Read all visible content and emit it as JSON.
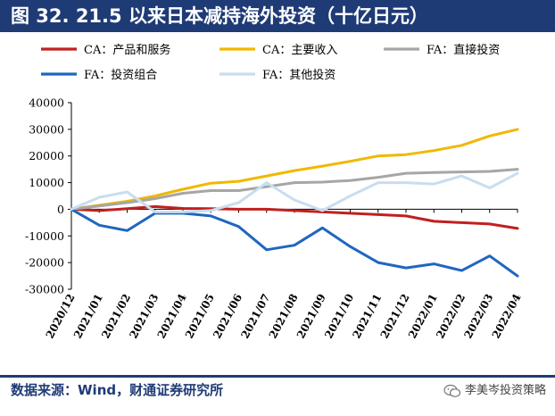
{
  "title": "图 32. 21.5 以来日本减持海外投资（十亿日元）",
  "source": "数据来源：Wind，财通证券研究所",
  "watermark": "李美岑投资策略",
  "chart_data": {
    "type": "line",
    "categories": [
      "2020/12",
      "2021/01",
      "2021/02",
      "2021/03",
      "2021/04",
      "2021/05",
      "2021/06",
      "2021/07",
      "2021/08",
      "2021/09",
      "2021/10",
      "2021/11",
      "2021/12",
      "2022/01",
      "2022/02",
      "2022/03",
      "2022/04"
    ],
    "ylim": [
      -30000,
      40000
    ],
    "yticks": [
      -30000,
      -20000,
      -10000,
      0,
      10000,
      20000,
      30000,
      40000
    ],
    "legend_position": "top",
    "series": [
      {
        "name": "CA：产品和服务",
        "color": "#c0201f",
        "values": [
          0,
          -500,
          200,
          1000,
          300,
          200,
          0,
          0,
          -500,
          -1000,
          -1500,
          -2000,
          -2500,
          -4500,
          -5000,
          -5500,
          -7200
        ]
      },
      {
        "name": "CA：主要收入",
        "color": "#f0b800",
        "values": [
          0,
          1500,
          3000,
          5000,
          7500,
          9800,
          10500,
          12500,
          14500,
          16200,
          18000,
          20000,
          20500,
          22000,
          24000,
          27500,
          30000
        ]
      },
      {
        "name": "FA：直接投资",
        "color": "#a6a6a6",
        "values": [
          0,
          1200,
          2500,
          4000,
          6000,
          7000,
          7000,
          8500,
          10000,
          10200,
          10800,
          12000,
          13500,
          13800,
          14000,
          14200,
          15000
        ]
      },
      {
        "name": "FA：投资组合",
        "color": "#1f66c0",
        "values": [
          0,
          -6000,
          -8000,
          -1500,
          -1500,
          -2500,
          -6500,
          -15200,
          -13500,
          -7000,
          -14000,
          -20000,
          -22000,
          -20500,
          -23000,
          -17500,
          -25000
        ]
      },
      {
        "name": "FA：其他投资",
        "color": "#c8ddf0",
        "values": [
          0,
          4500,
          6500,
          -1000,
          -1000,
          -500,
          2500,
          10000,
          3500,
          -500,
          5000,
          10000,
          10000,
          9500,
          12500,
          8000,
          13500
        ]
      }
    ]
  }
}
